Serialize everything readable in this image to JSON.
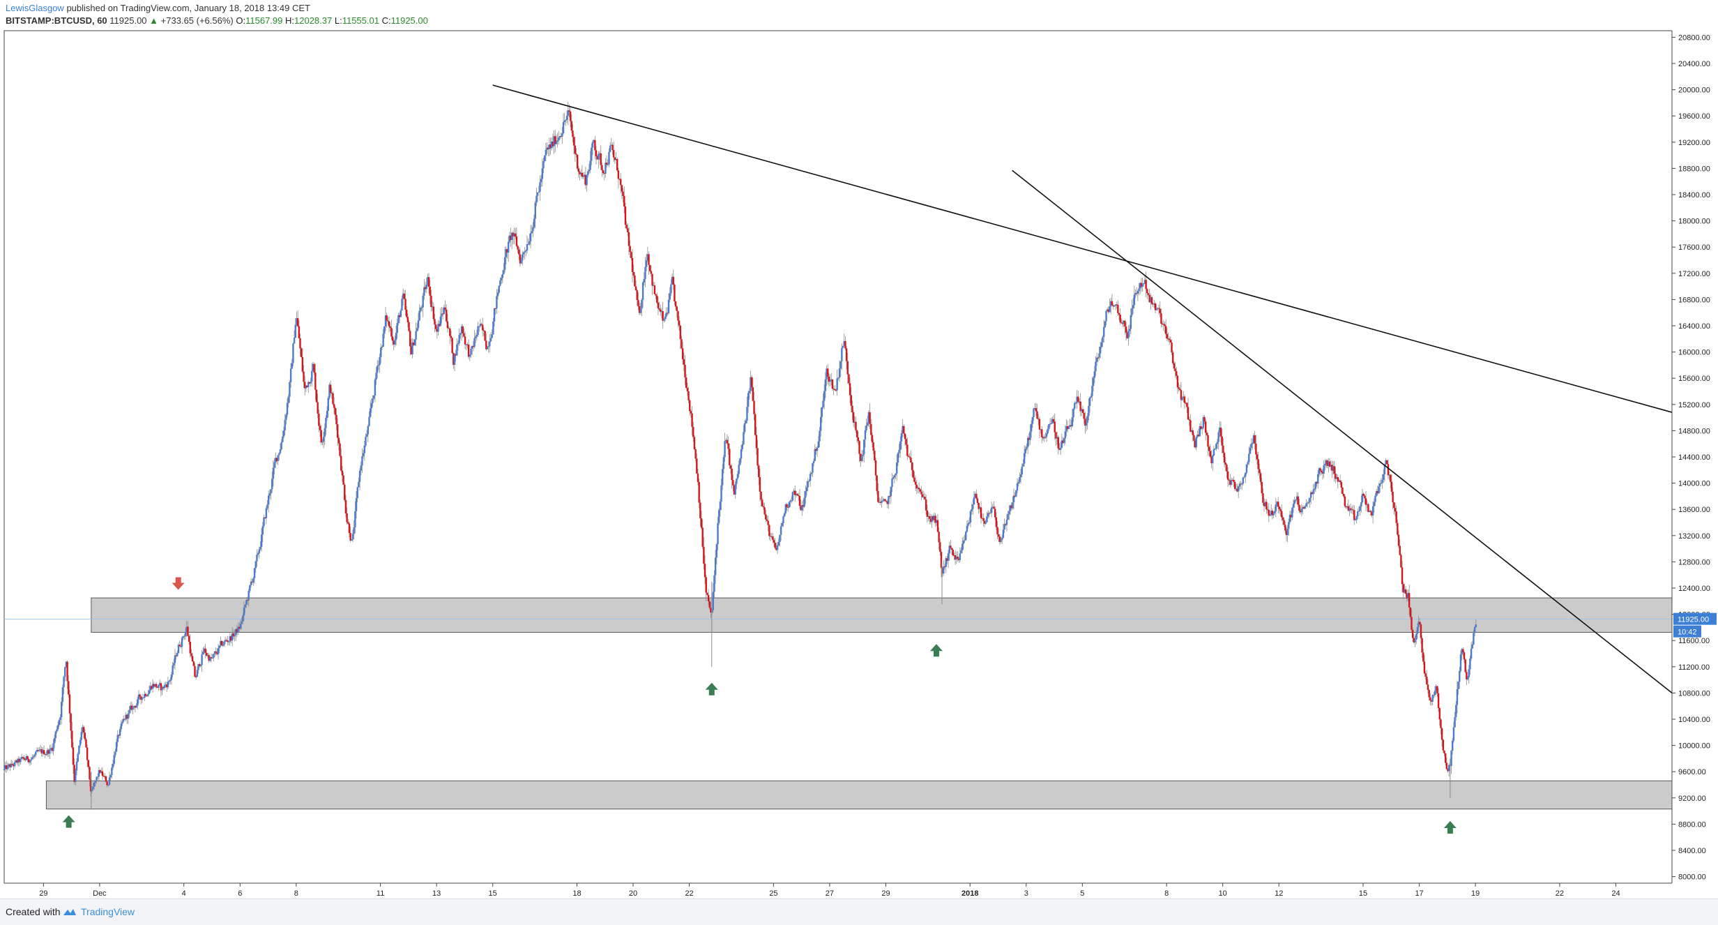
{
  "header": {
    "publisher": "LewisGlasgow",
    "published_text": "published on TradingView.com, January 18, 2018 13:49 CET",
    "symbol": "BITSTAMP:BTCUSD, 60",
    "last": "11925.00",
    "change": "+733.65 (+6.56%)",
    "open_label": "O:",
    "open": "11567.99",
    "high_label": "H:",
    "high": "12028.37",
    "low_label": "L:",
    "low": "11555.01",
    "close_label": "C:",
    "close": "11925.00"
  },
  "footer": {
    "created_with": "Created with",
    "brand": "TradingView"
  },
  "colors": {
    "up": "#4a7bd0",
    "down": "#d8141b",
    "zone_fill": "#c8c8c8",
    "zone_stroke": "#5a5a5a",
    "marker_up": "#3a7d52",
    "marker_down": "#d9564a",
    "price_label_bg": "#3d7fd6",
    "current_price_line": "#9fc4ef"
  },
  "chart_data": {
    "type": "line",
    "title": "",
    "chart_style": "candlestick",
    "ylim": [
      7900,
      20900
    ],
    "y_ticks": [
      8000,
      8400,
      8800,
      9200,
      9600,
      10000,
      10400,
      10800,
      11200,
      11600,
      12000,
      12400,
      12800,
      13200,
      13600,
      14000,
      14400,
      14800,
      15200,
      15600,
      16000,
      16400,
      16800,
      17200,
      17600,
      18000,
      18400,
      18800,
      19200,
      19600,
      20000,
      20400,
      20800
    ],
    "y_tick_labels": [
      "8000.00",
      "8400.00",
      "8800.00",
      "9200.00",
      "9600.00",
      "10000.00",
      "10400.00",
      "10800.00",
      "11200.00",
      "11600.00",
      "12000.00",
      "12400.00",
      "12800.00",
      "13200.00",
      "13600.00",
      "14000.00",
      "14400.00",
      "14800.00",
      "15200.00",
      "15600.00",
      "16000.00",
      "16400.00",
      "16800.00",
      "17200.00",
      "17600.00",
      "18000.00",
      "18400.00",
      "18800.00",
      "19200.00",
      "19600.00",
      "20000.00",
      "20400.00",
      "20800.00"
    ],
    "x_ticks": [
      {
        "day": 29,
        "label": "29"
      },
      {
        "day": 31,
        "label": "Dec"
      },
      {
        "day": 34,
        "label": "4"
      },
      {
        "day": 36,
        "label": "6"
      },
      {
        "day": 38,
        "label": "8"
      },
      {
        "day": 41,
        "label": "11"
      },
      {
        "day": 43,
        "label": "13"
      },
      {
        "day": 45,
        "label": "15"
      },
      {
        "day": 48,
        "label": "18"
      },
      {
        "day": 50,
        "label": "20"
      },
      {
        "day": 52,
        "label": "22"
      },
      {
        "day": 55,
        "label": "25"
      },
      {
        "day": 57,
        "label": "27"
      },
      {
        "day": 59,
        "label": "29"
      },
      {
        "day": 62,
        "label": "2018",
        "bold": true
      },
      {
        "day": 64,
        "label": "3"
      },
      {
        "day": 66,
        "label": "5"
      },
      {
        "day": 69,
        "label": "8"
      },
      {
        "day": 71,
        "label": "10"
      },
      {
        "day": 73,
        "label": "12"
      },
      {
        "day": 76,
        "label": "15"
      },
      {
        "day": 78,
        "label": "17"
      },
      {
        "day": 80,
        "label": "19"
      },
      {
        "day": 83,
        "label": "22"
      },
      {
        "day": 85,
        "label": "24"
      }
    ],
    "day_range": [
      27.6,
      87.0
    ],
    "path": [
      [
        27.6,
        9620
      ],
      [
        28.2,
        9760
      ],
      [
        28.8,
        9850
      ],
      [
        29.3,
        9950
      ],
      [
        29.6,
        10500
      ],
      [
        29.8,
        11350
      ],
      [
        30.1,
        9500
      ],
      [
        30.4,
        10300
      ],
      [
        30.7,
        9250
      ],
      [
        31.0,
        9600
      ],
      [
        31.3,
        9400
      ],
      [
        31.6,
        10050
      ],
      [
        31.9,
        10400
      ],
      [
        32.4,
        10700
      ],
      [
        32.9,
        10950
      ],
      [
        33.2,
        10850
      ],
      [
        33.5,
        11000
      ],
      [
        33.8,
        11500
      ],
      [
        34.1,
        11800
      ],
      [
        34.4,
        11000
      ],
      [
        34.7,
        11450
      ],
      [
        35.0,
        11300
      ],
      [
        35.4,
        11550
      ],
      [
        35.8,
        11700
      ],
      [
        36.0,
        11800
      ],
      [
        36.3,
        12300
      ],
      [
        36.6,
        12800
      ],
      [
        36.9,
        13500
      ],
      [
        37.2,
        14200
      ],
      [
        37.5,
        14700
      ],
      [
        37.8,
        15600
      ],
      [
        38.0,
        16600
      ],
      [
        38.3,
        15400
      ],
      [
        38.6,
        15800
      ],
      [
        38.9,
        14600
      ],
      [
        39.2,
        15500
      ],
      [
        39.5,
        14700
      ],
      [
        39.8,
        13500
      ],
      [
        40.0,
        13100
      ],
      [
        40.3,
        14300
      ],
      [
        40.6,
        14900
      ],
      [
        40.9,
        15800
      ],
      [
        41.2,
        16500
      ],
      [
        41.5,
        16200
      ],
      [
        41.8,
        16800
      ],
      [
        42.1,
        16000
      ],
      [
        42.4,
        16600
      ],
      [
        42.7,
        17100
      ],
      [
        43.0,
        16300
      ],
      [
        43.3,
        16700
      ],
      [
        43.6,
        15900
      ],
      [
        43.9,
        16400
      ],
      [
        44.2,
        15900
      ],
      [
        44.5,
        16400
      ],
      [
        44.8,
        16100
      ],
      [
        45.1,
        16700
      ],
      [
        45.4,
        17400
      ],
      [
        45.7,
        17800
      ],
      [
        46.0,
        17400
      ],
      [
        46.3,
        17800
      ],
      [
        46.6,
        18400
      ],
      [
        46.9,
        19000
      ],
      [
        47.2,
        19200
      ],
      [
        47.5,
        19500
      ],
      [
        47.7,
        19600
      ],
      [
        48.0,
        18900
      ],
      [
        48.3,
        18600
      ],
      [
        48.6,
        19200
      ],
      [
        48.9,
        18800
      ],
      [
        49.2,
        19100
      ],
      [
        49.5,
        18700
      ],
      [
        49.8,
        17700
      ],
      [
        50.0,
        17200
      ],
      [
        50.2,
        16500
      ],
      [
        50.5,
        17600
      ],
      [
        50.8,
        16800
      ],
      [
        51.1,
        16400
      ],
      [
        51.4,
        17000
      ],
      [
        51.7,
        16100
      ],
      [
        52.0,
        15300
      ],
      [
        52.3,
        14100
      ],
      [
        52.6,
        12300
      ],
      [
        52.8,
        11950
      ],
      [
        53.0,
        13300
      ],
      [
        53.3,
        14700
      ],
      [
        53.6,
        13800
      ],
      [
        53.9,
        14600
      ],
      [
        54.2,
        15600
      ],
      [
        54.5,
        14000
      ],
      [
        54.8,
        13300
      ],
      [
        55.1,
        12900
      ],
      [
        55.4,
        13600
      ],
      [
        55.7,
        13900
      ],
      [
        56.0,
        13600
      ],
      [
        56.3,
        14100
      ],
      [
        56.6,
        14700
      ],
      [
        56.9,
        15700
      ],
      [
        57.2,
        15400
      ],
      [
        57.5,
        16200
      ],
      [
        57.8,
        15200
      ],
      [
        58.1,
        14300
      ],
      [
        58.4,
        15100
      ],
      [
        58.7,
        13800
      ],
      [
        59.0,
        13600
      ],
      [
        59.3,
        14100
      ],
      [
        59.6,
        14800
      ],
      [
        59.9,
        14200
      ],
      [
        60.2,
        14000
      ],
      [
        60.5,
        13500
      ],
      [
        60.8,
        13400
      ],
      [
        61.0,
        12600
      ],
      [
        61.3,
        13000
      ],
      [
        61.6,
        12750
      ],
      [
        61.9,
        13300
      ],
      [
        62.2,
        13900
      ],
      [
        62.5,
        13300
      ],
      [
        62.8,
        13600
      ],
      [
        63.1,
        13100
      ],
      [
        63.4,
        13500
      ],
      [
        63.7,
        14000
      ],
      [
        64.0,
        14500
      ],
      [
        64.3,
        15100
      ],
      [
        64.6,
        14700
      ],
      [
        64.9,
        15000
      ],
      [
        65.2,
        14500
      ],
      [
        65.5,
        14800
      ],
      [
        65.8,
        15200
      ],
      [
        66.1,
        14900
      ],
      [
        66.4,
        15600
      ],
      [
        66.7,
        16200
      ],
      [
        67.0,
        16800
      ],
      [
        67.3,
        16600
      ],
      [
        67.6,
        16300
      ],
      [
        67.9,
        16900
      ],
      [
        68.2,
        17100
      ],
      [
        68.5,
        16700
      ],
      [
        68.8,
        16500
      ],
      [
        69.1,
        16100
      ],
      [
        69.4,
        15500
      ],
      [
        69.7,
        15100
      ],
      [
        70.0,
        14600
      ],
      [
        70.3,
        15000
      ],
      [
        70.6,
        14300
      ],
      [
        70.9,
        14800
      ],
      [
        71.2,
        14100
      ],
      [
        71.5,
        13900
      ],
      [
        71.8,
        14200
      ],
      [
        72.1,
        14800
      ],
      [
        72.4,
        13800
      ],
      [
        72.7,
        13500
      ],
      [
        73.0,
        13700
      ],
      [
        73.3,
        13300
      ],
      [
        73.6,
        13800
      ],
      [
        73.9,
        13500
      ],
      [
        74.2,
        13900
      ],
      [
        74.5,
        14200
      ],
      [
        74.8,
        14300
      ],
      [
        75.1,
        14100
      ],
      [
        75.4,
        13600
      ],
      [
        75.7,
        13400
      ],
      [
        76.0,
        13800
      ],
      [
        76.3,
        13500
      ],
      [
        76.6,
        14000
      ],
      [
        76.8,
        14300
      ],
      [
        77.0,
        14000
      ],
      [
        77.2,
        13300
      ],
      [
        77.4,
        12400
      ],
      [
        77.6,
        12300
      ],
      [
        77.8,
        11500
      ],
      [
        78.0,
        11900
      ],
      [
        78.2,
        11100
      ],
      [
        78.4,
        10600
      ],
      [
        78.6,
        10900
      ],
      [
        78.8,
        10100
      ],
      [
        79.0,
        9600
      ],
      [
        79.1,
        9700
      ],
      [
        79.3,
        10600
      ],
      [
        79.5,
        11500
      ],
      [
        79.7,
        11000
      ],
      [
        79.9,
        11600
      ],
      [
        80.05,
        11925
      ]
    ],
    "current_price": 11925,
    "current_price_label": "11925.00",
    "countdown_label": "10:42",
    "zones": [
      {
        "from_day": 30.7,
        "to_day": 87.0,
        "low": 11725,
        "high": 12250
      },
      {
        "from_day": 29.1,
        "to_day": 87.0,
        "low": 9030,
        "high": 9460
      }
    ],
    "trendlines": [
      {
        "x1": 45.0,
        "y1": 20070,
        "x2": 87.0,
        "y2": 15080
      },
      {
        "x1": 63.5,
        "y1": 18770,
        "x2": 87.0,
        "y2": 10800
      }
    ],
    "markers": [
      {
        "day": 33.8,
        "price": 12480,
        "dir": "down"
      },
      {
        "day": 52.8,
        "price": 10850,
        "dir": "up"
      },
      {
        "day": 60.8,
        "price": 11440,
        "dir": "up"
      },
      {
        "day": 29.9,
        "price": 8830,
        "dir": "up"
      },
      {
        "day": 79.1,
        "price": 8740,
        "dir": "up"
      }
    ]
  }
}
